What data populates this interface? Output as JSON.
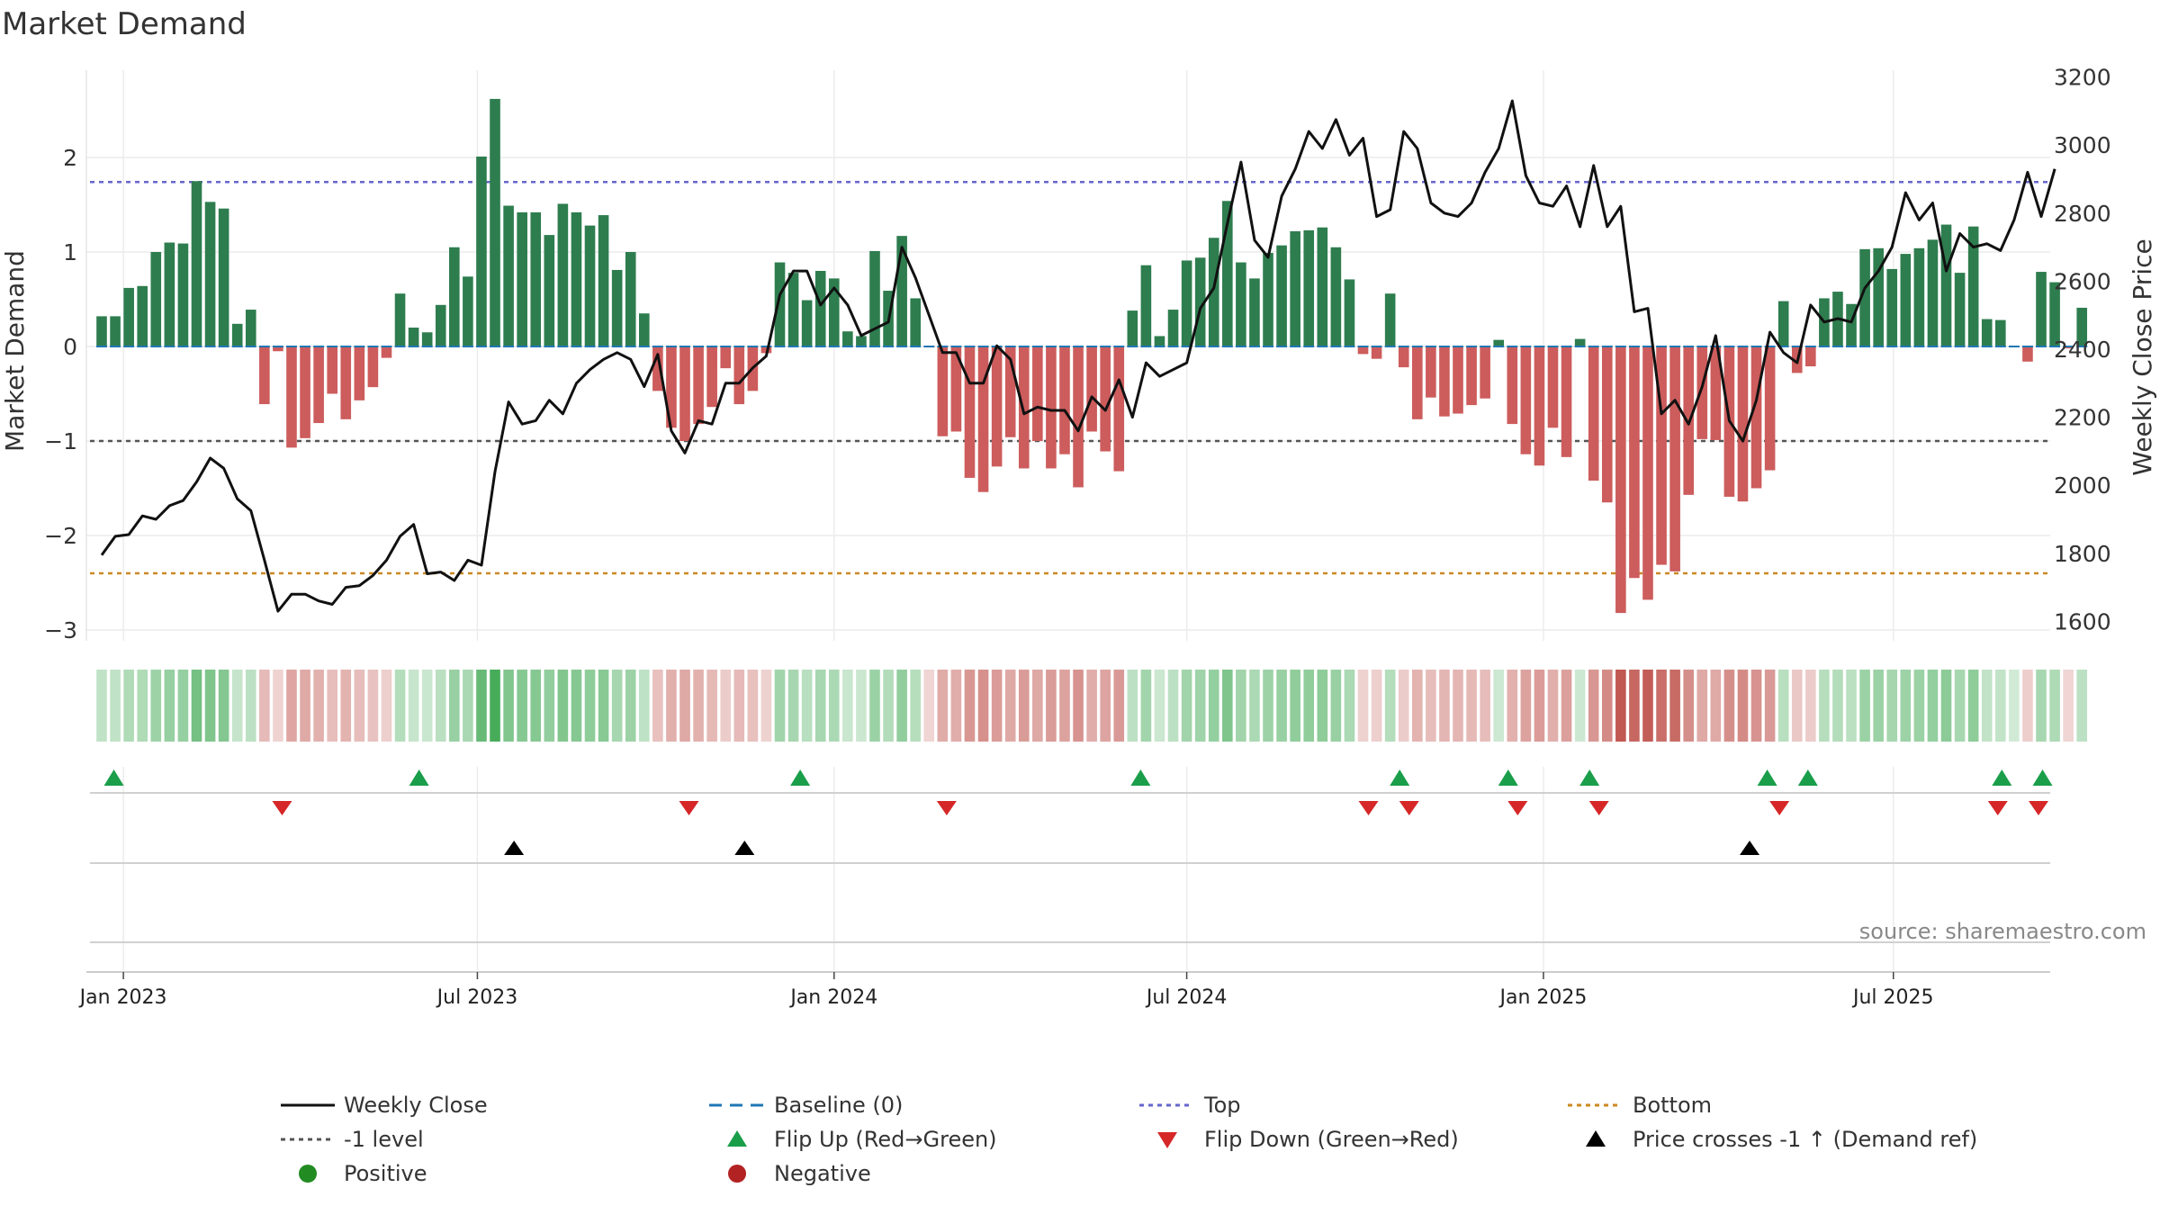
{
  "chart_data": {
    "type": "bar",
    "title": "Market Demand",
    "ylabel_left": "Market Demand",
    "ylabel_right": "Weekly Close Price",
    "ylim_left": [
      -3.1,
      2.8
    ],
    "ylim_right": [
      1580,
      3220
    ],
    "yticks_left": [
      2,
      1,
      0,
      -1,
      -2,
      -3
    ],
    "yticks_left_labels": [
      "2",
      "1",
      "0",
      "−1",
      "−2",
      "−3"
    ],
    "yticks_right": [
      3200,
      3000,
      2800,
      2600,
      2400,
      2200,
      2000,
      1800,
      1600
    ],
    "x_tick_labels": [
      "Jan 2023",
      "Jul 2023",
      "Jan 2024",
      "Jul 2024",
      "Jan 2025",
      "Jul 2025"
    ],
    "x_tick_weeks": [
      1.6,
      27.7,
      54.0,
      80.0,
      106.3,
      132.1
    ],
    "top_level": 1.74,
    "bottom_level": -2.4,
    "minus_one_level": -1,
    "baseline": 0,
    "colors": {
      "positive": "#2e7d4f",
      "negative": "#cd5c5c",
      "price": "#111111",
      "top": "#6666cc",
      "bottom": "#cc8822",
      "minus_one": "#555555",
      "baseline": "#1f77b4",
      "flip_up": "#1a9e4a",
      "flip_down": "#d62728",
      "cross": "#000000",
      "positive_dot": "#228b22",
      "negative_dot": "#b22222"
    },
    "demand": [
      0.32,
      0.32,
      0.62,
      0.64,
      1.0,
      1.1,
      1.09,
      1.75,
      1.53,
      1.46,
      0.24,
      0.39,
      -0.61,
      -0.05,
      -1.07,
      -0.97,
      -0.81,
      -0.5,
      -0.77,
      -0.57,
      -0.43,
      -0.12,
      0.56,
      0.2,
      0.15,
      0.44,
      1.05,
      0.74,
      2.01,
      2.62,
      1.49,
      1.42,
      1.42,
      1.18,
      1.51,
      1.42,
      1.28,
      1.39,
      0.81,
      1.0,
      0.35,
      -0.47,
      -0.86,
      -1.0,
      -0.82,
      -0.64,
      -0.23,
      -0.61,
      -0.47,
      -0.07,
      0.89,
      0.78,
      0.49,
      0.8,
      0.72,
      0.16,
      0.11,
      1.01,
      0.59,
      1.17,
      0.51,
      -0.01,
      -0.95,
      -0.9,
      -1.39,
      -1.54,
      -1.27,
      -0.96,
      -1.29,
      -1.0,
      -1.29,
      -1.14,
      -1.49,
      -0.9,
      -1.11,
      -1.32,
      0.38,
      0.86,
      0.11,
      0.39,
      0.91,
      0.94,
      1.15,
      1.54,
      0.89,
      0.72,
      0.99,
      1.07,
      1.22,
      1.23,
      1.26,
      1.05,
      0.71,
      -0.08,
      -0.13,
      0.56,
      -0.22,
      -0.77,
      -0.54,
      -0.74,
      -0.71,
      -0.62,
      -0.55,
      0.07,
      -0.82,
      -1.14,
      -1.26,
      -0.86,
      -1.17,
      0.08,
      -1.42,
      -1.65,
      -2.82,
      -2.45,
      -2.68,
      -2.31,
      -2.38,
      -1.57,
      -0.98,
      -0.99,
      -1.59,
      -1.64,
      -1.5,
      -1.31,
      0.48,
      -0.28,
      -0.21,
      0.51,
      0.58,
      0.45,
      1.03,
      1.04,
      0.82,
      0.98,
      1.04,
      1.13,
      1.29,
      0.78,
      1.27,
      0.29,
      0.28,
      0.0,
      -0.16,
      0.79,
      0.68,
      -0.02,
      0.41
    ],
    "price": [
      1795,
      1850,
      1855,
      1910,
      1900,
      1940,
      1955,
      2010,
      2080,
      2050,
      1960,
      1925,
      1780,
      1630,
      1680,
      1680,
      1660,
      1650,
      1700,
      1705,
      1735,
      1780,
      1850,
      1885,
      1740,
      1745,
      1720,
      1780,
      1765,
      2040,
      2245,
      2180,
      2190,
      2250,
      2210,
      2300,
      2340,
      2370,
      2390,
      2370,
      2290,
      2385,
      2160,
      2095,
      2190,
      2180,
      2300,
      2300,
      2345,
      2380,
      2560,
      2630,
      2630,
      2530,
      2580,
      2530,
      2440,
      2460,
      2480,
      2700,
      2610,
      2500,
      2390,
      2390,
      2300,
      2300,
      2410,
      2370,
      2210,
      2230,
      2220,
      2220,
      2160,
      2260,
      2220,
      2310,
      2200,
      2360,
      2320,
      2340,
      2360,
      2520,
      2580,
      2770,
      2950,
      2720,
      2670,
      2850,
      2930,
      3040,
      2990,
      3075,
      2970,
      3020,
      2790,
      2810,
      3040,
      2990,
      2830,
      2800,
      2790,
      2830,
      2920,
      2990,
      3130,
      2910,
      2830,
      2820,
      2880,
      2760,
      2940,
      2760,
      2820,
      2510,
      2520,
      2210,
      2250,
      2180,
      2290,
      2440,
      2190,
      2130,
      2250,
      2450,
      2390,
      2360,
      2530,
      2480,
      2490,
      2480,
      2580,
      2630,
      2700,
      2860,
      2780,
      2830,
      2630,
      2740,
      2700,
      2710,
      2690,
      2780,
      2920,
      2790,
      2930
    ],
    "signals": {
      "flip_up_weeks": [
        0.9,
        23.4,
        51.5,
        76.6,
        95.7,
        103.7,
        109.7,
        122.8,
        125.8,
        140.1,
        143.1
      ],
      "flip_down_weeks": [
        13.3,
        43.3,
        62.3,
        93.4,
        96.4,
        104.4,
        110.4,
        123.7,
        139.8,
        142.8
      ],
      "cross_weeks": [
        30.4,
        47.4,
        121.5
      ]
    },
    "legend": {
      "weekly_close": "Weekly Close",
      "baseline": "Baseline (0)",
      "top": "Top",
      "bottom": "Bottom",
      "minus_one": "-1 level",
      "flip_up": "Flip Up (Red→Green)",
      "flip_down": "Flip Down (Green→Red)",
      "cross": "Price crosses -1 ↑ (Demand ref)",
      "positive": "Positive",
      "negative": "Negative"
    },
    "source": "source: sharemaestro.com"
  }
}
